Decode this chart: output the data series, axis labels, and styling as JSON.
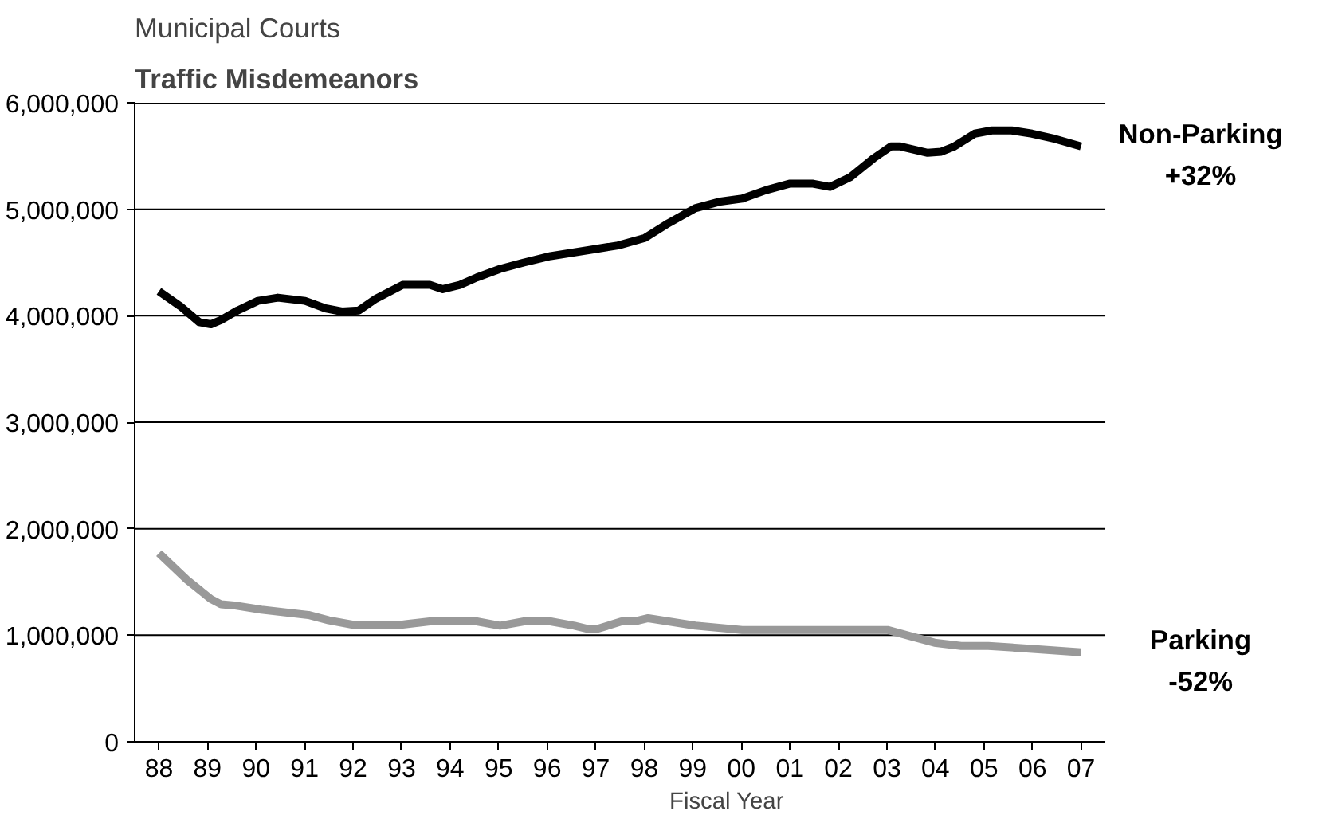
{
  "chart_data": {
    "type": "line",
    "title": "Municipal Courts",
    "subtitle": "Traffic Misdemeanors",
    "xlabel": "Fiscal Year",
    "xlim": [
      1987.5,
      2007.5
    ],
    "xticks": [
      {
        "value": 1988,
        "label": "88"
      },
      {
        "value": 1989,
        "label": "89"
      },
      {
        "value": 1990,
        "label": "90"
      },
      {
        "value": 1991,
        "label": "91"
      },
      {
        "value": 1992,
        "label": "92"
      },
      {
        "value": 1993,
        "label": "93"
      },
      {
        "value": 1994,
        "label": "94"
      },
      {
        "value": 1995,
        "label": "95"
      },
      {
        "value": 1996,
        "label": "96"
      },
      {
        "value": 1997,
        "label": "97"
      },
      {
        "value": 1998,
        "label": "98"
      },
      {
        "value": 1999,
        "label": "99"
      },
      {
        "value": 2000,
        "label": "00"
      },
      {
        "value": 2001,
        "label": "01"
      },
      {
        "value": 2002,
        "label": "02"
      },
      {
        "value": 2003,
        "label": "03"
      },
      {
        "value": 2004,
        "label": "04"
      },
      {
        "value": 2005,
        "label": "05"
      },
      {
        "value": 2006,
        "label": "06"
      },
      {
        "value": 2007,
        "label": "07"
      }
    ],
    "ylim": [
      0,
      6000000
    ],
    "yticks": [
      0,
      {
        "value": 1000000,
        "label": "1,000,000"
      },
      {
        "value": 2000000,
        "label": "2,000,000"
      },
      {
        "value": 3000000,
        "label": "3,000,000"
      },
      {
        "value": 4000000,
        "label": "4,000,000"
      },
      {
        "value": 5000000,
        "label": "5,000,000"
      },
      {
        "value": 6000000,
        "label": "6,000,000"
      }
    ],
    "grid": "y",
    "marker": "none",
    "line_style": "solid",
    "series": [
      {
        "name": "Non-Parking",
        "color": "#000000",
        "x": [
          1988.0,
          1988.44,
          1988.83,
          1989.07,
          1989.28,
          1989.62,
          1990.04,
          1990.45,
          1991.01,
          1991.43,
          1991.77,
          1992.12,
          1992.47,
          1993.02,
          1993.58,
          1993.85,
          1994.2,
          1994.55,
          1995.03,
          1995.52,
          1996.07,
          1996.9,
          1997.46,
          1998.01,
          1998.5,
          1999.05,
          1999.54,
          2000.02,
          2000.51,
          2000.99,
          2001.48,
          2001.83,
          2002.24,
          2002.73,
          2003.08,
          2003.28,
          2003.84,
          2004.12,
          2004.39,
          2004.81,
          2005.16,
          2005.57,
          2005.99,
          2006.47,
          2007.0
        ],
        "values": [
          4230000,
          4090000,
          3940000,
          3920000,
          3960000,
          4050000,
          4140000,
          4170000,
          4140000,
          4070000,
          4040000,
          4050000,
          4160000,
          4290000,
          4290000,
          4250000,
          4290000,
          4360000,
          4440000,
          4500000,
          4560000,
          4620000,
          4660000,
          4730000,
          4870000,
          5010000,
          5070000,
          5100000,
          5180000,
          5240000,
          5240000,
          5210000,
          5300000,
          5480000,
          5590000,
          5590000,
          5530000,
          5540000,
          5590000,
          5710000,
          5740000,
          5740000,
          5710000,
          5660000,
          5590000
        ]
      },
      {
        "name": "Parking",
        "color": "#999999",
        "x": [
          1988.0,
          1988.58,
          1989.07,
          1989.28,
          1989.55,
          1990.11,
          1991.08,
          1991.5,
          1991.98,
          1993.02,
          1993.58,
          1994.55,
          1995.03,
          1995.52,
          1996.07,
          1996.56,
          1996.83,
          1997.04,
          1997.53,
          1997.81,
          1998.08,
          1998.5,
          1999.05,
          2000.02,
          2003.01,
          2003.49,
          2003.98,
          2004.53,
          2005.09,
          2006.06,
          2007.0
        ],
        "values": [
          1770000,
          1520000,
          1340000,
          1290000,
          1280000,
          1240000,
          1190000,
          1140000,
          1100000,
          1100000,
          1130000,
          1130000,
          1090000,
          1130000,
          1130000,
          1090000,
          1060000,
          1060000,
          1130000,
          1130000,
          1160000,
          1130000,
          1090000,
          1050000,
          1050000,
          990000,
          930000,
          900000,
          900000,
          870000,
          840000
        ]
      }
    ],
    "annotations": [
      "+32%",
      "-52%"
    ]
  }
}
